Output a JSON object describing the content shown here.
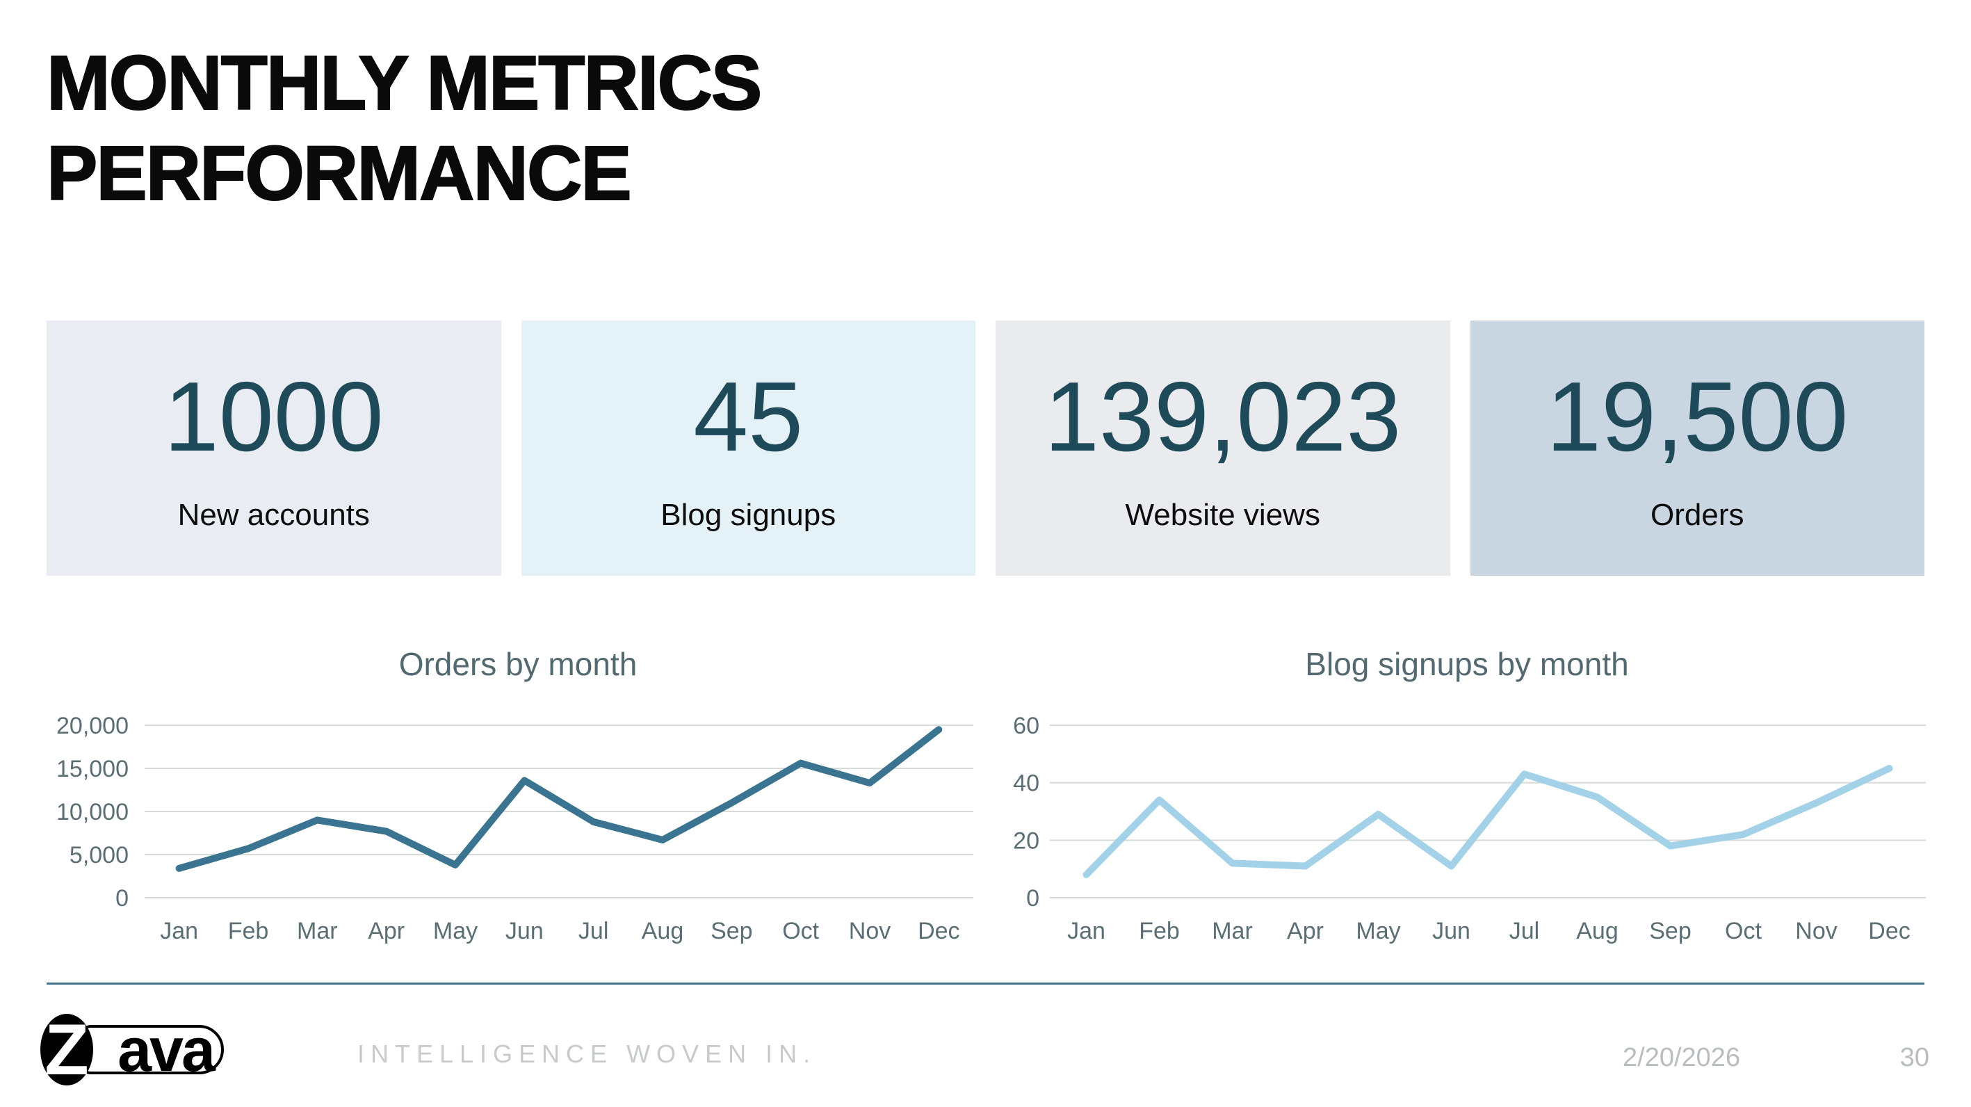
{
  "header": {
    "title": "MONTHLY METRICS PERFORMANCE"
  },
  "kpis": [
    {
      "value": "1000",
      "label": "New accounts",
      "bg": "#e9edf3"
    },
    {
      "value": "45",
      "label": "Blog signups",
      "bg": "#e4f1f6"
    },
    {
      "value": "139,023",
      "label": "Website views",
      "bg": "#e9ebee"
    },
    {
      "value": "19,500",
      "label": "Orders",
      "bg": "#c9d6e2"
    }
  ],
  "kpi_value_color": "#1f4a5a",
  "chart_data": [
    {
      "type": "line",
      "title": "Orders by month",
      "categories": [
        "Jan",
        "Feb",
        "Mar",
        "Apr",
        "May",
        "Jun",
        "Jul",
        "Aug",
        "Sep",
        "Oct",
        "Nov",
        "Dec"
      ],
      "values": [
        3400,
        5700,
        9000,
        7700,
        3800,
        13600,
        8800,
        6700,
        11000,
        15600,
        13300,
        19500
      ],
      "xlabel": "",
      "ylabel": "",
      "ylim": [
        0,
        20000
      ],
      "yticks": [
        0,
        5000,
        10000,
        15000,
        20000
      ],
      "grid": true,
      "legend": false,
      "line_color": "#3b7490",
      "grid_color": "#d8dada",
      "tick_color": "#5a6e74",
      "title_color": "#54696f"
    },
    {
      "type": "line",
      "title": "Blog signups by month",
      "categories": [
        "Jan",
        "Feb",
        "Mar",
        "Apr",
        "May",
        "Jun",
        "Jul",
        "Aug",
        "Sep",
        "Oct",
        "Nov",
        "Dec"
      ],
      "values": [
        8,
        34,
        12,
        11,
        29,
        11,
        43,
        35,
        18,
        22,
        33,
        45
      ],
      "xlabel": "",
      "ylabel": "",
      "ylim": [
        0,
        60
      ],
      "yticks": [
        0,
        20,
        40,
        60
      ],
      "grid": true,
      "legend": false,
      "line_color": "#a3d1e8",
      "grid_color": "#d8dada",
      "tick_color": "#5a6e74",
      "title_color": "#54696f"
    }
  ],
  "footer": {
    "logo_z": "Z",
    "logo_rest": "ava",
    "tagline": "INTELLIGENCE WOVEN IN.",
    "date": "2/20/2026",
    "page_number": "30"
  }
}
